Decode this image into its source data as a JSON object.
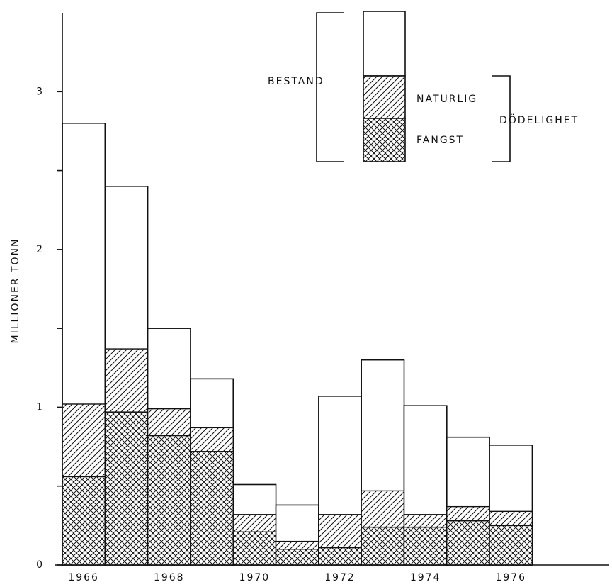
{
  "chart_data": {
    "type": "bar",
    "y_label": "MILLIONER TONN",
    "x": [
      1966,
      1967,
      1968,
      1969,
      1970,
      1971,
      1972,
      1973,
      1974,
      1975,
      1976
    ],
    "xlim": [
      1965.5,
      1978.3
    ],
    "xticks": [
      1966,
      1968,
      1970,
      1972,
      1974,
      1976
    ],
    "ylim": [
      0,
      3.5
    ],
    "yticks": [
      0,
      1,
      2,
      3
    ],
    "yminor_ticks": [
      0.5,
      1.5,
      2.5
    ],
    "mortality_label": "DÖDELIGHET",
    "series": [
      {
        "name": "BESTAND",
        "color": "#ffffff",
        "values": [
          2.8,
          2.4,
          1.5,
          1.18,
          0.51,
          0.38,
          1.07,
          1.3,
          1.01,
          0.81,
          0.76
        ]
      },
      {
        "name": "NATURLIG",
        "color": "#111111",
        "values": [
          0.46,
          0.4,
          0.17,
          0.15,
          0.11,
          0.05,
          0.21,
          0.23,
          0.08,
          0.09,
          0.09
        ]
      },
      {
        "name": "FANGST",
        "color": "#111111",
        "values": [
          0.56,
          0.97,
          0.82,
          0.72,
          0.21,
          0.1,
          0.11,
          0.24,
          0.24,
          0.28,
          0.25
        ]
      }
    ]
  }
}
